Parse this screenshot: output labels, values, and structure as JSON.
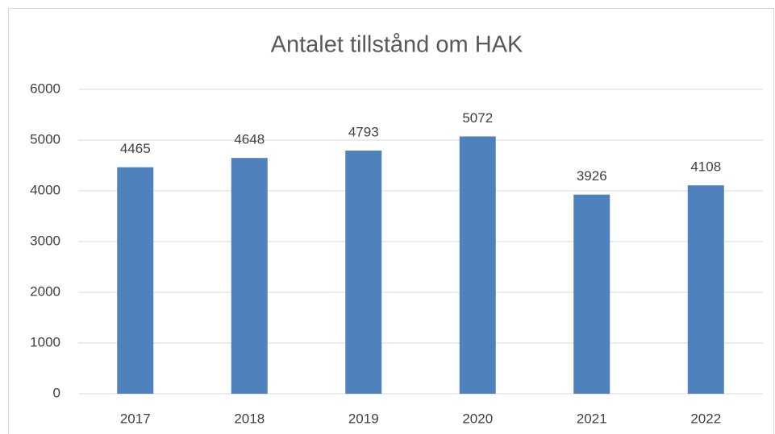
{
  "chart_data": {
    "type": "bar",
    "title": "Antalet tillstånd om HAK",
    "categories": [
      "2017",
      "2018",
      "2019",
      "2020",
      "2021",
      "2022"
    ],
    "values": [
      4465,
      4648,
      4793,
      5072,
      3926,
      4108
    ],
    "color": "#4f81bd",
    "ylim": [
      0,
      6000
    ],
    "yticks": [
      0,
      1000,
      2000,
      3000,
      4000,
      5000,
      6000
    ],
    "grid": true
  }
}
